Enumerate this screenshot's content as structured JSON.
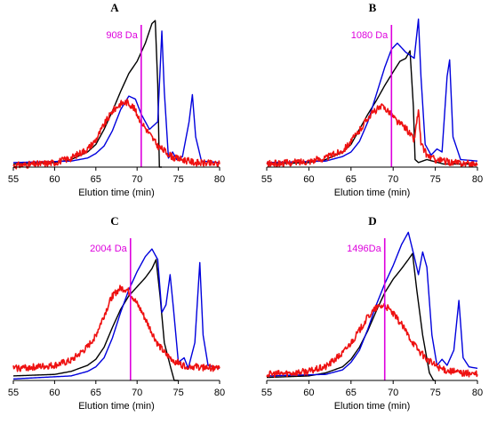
{
  "colors": {
    "black_series": "#000000",
    "blue_series": "#0000dd",
    "red_series": "#ee1111",
    "marker": "#dd00dd"
  },
  "chart_data": [
    {
      "type": "line",
      "panel": "A",
      "title": "",
      "xlabel": "Elution time (min)",
      "ylabel": "",
      "xlim": [
        55,
        80
      ],
      "ylim": [
        0,
        1
      ],
      "x_ticks": [
        55,
        60,
        65,
        70,
        75,
        80
      ],
      "marker": {
        "x": 70.5,
        "label": "908 Da"
      },
      "series": [
        {
          "color": "black",
          "points": [
            [
              55,
              0.02
            ],
            [
              60,
              0.03
            ],
            [
              62,
              0.05
            ],
            [
              64,
              0.1
            ],
            [
              65,
              0.15
            ],
            [
              66,
              0.25
            ],
            [
              67,
              0.37
            ],
            [
              68,
              0.5
            ],
            [
              69,
              0.62
            ],
            [
              70,
              0.7
            ],
            [
              71,
              0.82
            ],
            [
              71.8,
              0.95
            ],
            [
              72.2,
              0.97
            ],
            [
              72.5,
              0.55
            ],
            [
              72.7,
              0.0
            ],
            [
              73,
              0.0
            ]
          ]
        },
        {
          "color": "blue",
          "points": [
            [
              55,
              0.03
            ],
            [
              62,
              0.04
            ],
            [
              64,
              0.06
            ],
            [
              65,
              0.09
            ],
            [
              66,
              0.14
            ],
            [
              67,
              0.24
            ],
            [
              68,
              0.38
            ],
            [
              69,
              0.47
            ],
            [
              69.8,
              0.45
            ],
            [
              70.5,
              0.35
            ],
            [
              71.5,
              0.25
            ],
            [
              72.5,
              0.3
            ],
            [
              73,
              0.9
            ],
            [
              73.3,
              0.5
            ],
            [
              73.8,
              0.06
            ],
            [
              74.3,
              0.1
            ],
            [
              74.8,
              0.05
            ],
            [
              75.5,
              0.07
            ],
            [
              76.3,
              0.3
            ],
            [
              76.7,
              0.48
            ],
            [
              77.1,
              0.2
            ],
            [
              77.8,
              0.04
            ],
            [
              80,
              0.03
            ]
          ]
        },
        {
          "color": "red",
          "points": [
            [
              55,
              0.01
            ],
            [
              58,
              0.02
            ],
            [
              60,
              0.03
            ],
            [
              62,
              0.06
            ],
            [
              64,
              0.12
            ],
            [
              65,
              0.18
            ],
            [
              66,
              0.28
            ],
            [
              67,
              0.37
            ],
            [
              68,
              0.42
            ],
            [
              68.8,
              0.43
            ],
            [
              69.5,
              0.4
            ],
            [
              70.5,
              0.3
            ],
            [
              71.5,
              0.22
            ],
            [
              72.5,
              0.14
            ],
            [
              73.5,
              0.1
            ],
            [
              74.5,
              0.06
            ],
            [
              75.5,
              0.05
            ],
            [
              77,
              0.03
            ],
            [
              80,
              0.02
            ]
          ]
        }
      ]
    },
    {
      "type": "line",
      "panel": "B",
      "title": "",
      "xlabel": "Elution time (min)",
      "ylabel": "",
      "xlim": [
        55,
        80
      ],
      "ylim": [
        0,
        1
      ],
      "x_ticks": [
        55,
        60,
        65,
        70,
        75,
        80
      ],
      "marker": {
        "x": 69.8,
        "label": "1080 Da"
      },
      "series": [
        {
          "color": "black",
          "points": [
            [
              55,
              0.02
            ],
            [
              60,
              0.03
            ],
            [
              62,
              0.05
            ],
            [
              64,
              0.1
            ],
            [
              65,
              0.15
            ],
            [
              66,
              0.25
            ],
            [
              67,
              0.35
            ],
            [
              68,
              0.44
            ],
            [
              69,
              0.54
            ],
            [
              70,
              0.63
            ],
            [
              70.8,
              0.7
            ],
            [
              71.5,
              0.72
            ],
            [
              72,
              0.77
            ],
            [
              72.4,
              0.4
            ],
            [
              72.6,
              0.05
            ],
            [
              73,
              0.03
            ],
            [
              74,
              0.05
            ],
            [
              76,
              0.02
            ],
            [
              80,
              0.02
            ]
          ]
        },
        {
          "color": "blue",
          "points": [
            [
              55,
              0.03
            ],
            [
              62,
              0.04
            ],
            [
              64,
              0.07
            ],
            [
              65,
              0.1
            ],
            [
              66,
              0.17
            ],
            [
              67,
              0.3
            ],
            [
              68,
              0.48
            ],
            [
              69,
              0.66
            ],
            [
              69.8,
              0.78
            ],
            [
              70.5,
              0.82
            ],
            [
              71.5,
              0.76
            ],
            [
              72.5,
              0.72
            ],
            [
              73,
              0.98
            ],
            [
              73.3,
              0.6
            ],
            [
              73.8,
              0.15
            ],
            [
              74.5,
              0.08
            ],
            [
              75.2,
              0.12
            ],
            [
              75.8,
              0.1
            ],
            [
              76.4,
              0.6
            ],
            [
              76.7,
              0.71
            ],
            [
              77.1,
              0.2
            ],
            [
              78,
              0.05
            ],
            [
              80,
              0.04
            ]
          ]
        },
        {
          "color": "red",
          "points": [
            [
              55,
              0.02
            ],
            [
              58,
              0.03
            ],
            [
              60,
              0.04
            ],
            [
              62,
              0.06
            ],
            [
              64,
              0.11
            ],
            [
              65,
              0.17
            ],
            [
              66,
              0.24
            ],
            [
              67,
              0.33
            ],
            [
              68,
              0.38
            ],
            [
              68.8,
              0.4
            ],
            [
              69.5,
              0.37
            ],
            [
              70.5,
              0.3
            ],
            [
              71.5,
              0.26
            ],
            [
              72.5,
              0.18
            ],
            [
              73,
              0.38
            ],
            [
              73.3,
              0.15
            ],
            [
              74,
              0.08
            ],
            [
              75,
              0.05
            ],
            [
              77,
              0.03
            ],
            [
              80,
              0.02
            ]
          ]
        }
      ]
    },
    {
      "type": "line",
      "panel": "C",
      "title": "",
      "xlabel": "Elution time (min)",
      "ylabel": "",
      "xlim": [
        55,
        80
      ],
      "ylim": [
        0,
        1
      ],
      "x_ticks": [
        55,
        60,
        65,
        70,
        75,
        80
      ],
      "marker": {
        "x": 69.2,
        "label": "2004 Da"
      },
      "series": [
        {
          "color": "black",
          "points": [
            [
              55,
              0.03
            ],
            [
              60,
              0.04
            ],
            [
              62,
              0.06
            ],
            [
              64,
              0.1
            ],
            [
              65,
              0.14
            ],
            [
              66,
              0.22
            ],
            [
              67,
              0.35
            ],
            [
              68,
              0.47
            ],
            [
              69,
              0.56
            ],
            [
              70,
              0.62
            ],
            [
              71,
              0.68
            ],
            [
              71.8,
              0.74
            ],
            [
              72.3,
              0.8
            ],
            [
              72.8,
              0.55
            ],
            [
              73.3,
              0.25
            ],
            [
              74,
              0.1
            ],
            [
              74.5,
              0.0
            ],
            [
              75,
              0.0
            ]
          ]
        },
        {
          "color": "blue",
          "points": [
            [
              55,
              0.01
            ],
            [
              62,
              0.03
            ],
            [
              64,
              0.06
            ],
            [
              65,
              0.09
            ],
            [
              66,
              0.15
            ],
            [
              67,
              0.28
            ],
            [
              68,
              0.45
            ],
            [
              69,
              0.6
            ],
            [
              70,
              0.72
            ],
            [
              71,
              0.82
            ],
            [
              71.8,
              0.87
            ],
            [
              72.5,
              0.8
            ],
            [
              73,
              0.45
            ],
            [
              73.5,
              0.5
            ],
            [
              74,
              0.7
            ],
            [
              74.4,
              0.48
            ],
            [
              75,
              0.12
            ],
            [
              75.7,
              0.15
            ],
            [
              76.2,
              0.08
            ],
            [
              77,
              0.25
            ],
            [
              77.6,
              0.78
            ],
            [
              78,
              0.3
            ],
            [
              78.6,
              0.1
            ],
            [
              80,
              0.08
            ]
          ]
        },
        {
          "color": "red",
          "points": [
            [
              55,
              0.08
            ],
            [
              58,
              0.09
            ],
            [
              60,
              0.1
            ],
            [
              62,
              0.13
            ],
            [
              64,
              0.22
            ],
            [
              65,
              0.3
            ],
            [
              66,
              0.43
            ],
            [
              67,
              0.56
            ],
            [
              68,
              0.61
            ],
            [
              68.8,
              0.6
            ],
            [
              69.5,
              0.55
            ],
            [
              70.5,
              0.46
            ],
            [
              71.5,
              0.35
            ],
            [
              72.5,
              0.24
            ],
            [
              73.5,
              0.17
            ],
            [
              74.5,
              0.13
            ],
            [
              75.5,
              0.1
            ],
            [
              77,
              0.09
            ],
            [
              80,
              0.08
            ]
          ]
        }
      ]
    },
    {
      "type": "line",
      "panel": "D",
      "title": "",
      "xlabel": "Elution time (min)",
      "ylabel": "",
      "xlim": [
        55,
        80
      ],
      "ylim": [
        0,
        1
      ],
      "x_ticks": [
        55,
        60,
        65,
        70,
        75,
        80
      ],
      "marker": {
        "x": 69.0,
        "label": "1496Da"
      },
      "series": [
        {
          "color": "black",
          "points": [
            [
              55,
              0.02
            ],
            [
              60,
              0.03
            ],
            [
              62,
              0.05
            ],
            [
              64,
              0.09
            ],
            [
              65,
              0.14
            ],
            [
              66,
              0.22
            ],
            [
              67,
              0.33
            ],
            [
              68,
              0.46
            ],
            [
              69,
              0.58
            ],
            [
              70,
              0.67
            ],
            [
              71,
              0.74
            ],
            [
              71.8,
              0.8
            ],
            [
              72.3,
              0.84
            ],
            [
              72.8,
              0.6
            ],
            [
              73.5,
              0.3
            ],
            [
              74.3,
              0.05
            ],
            [
              74.8,
              0.0
            ],
            [
              75,
              0.0
            ]
          ]
        },
        {
          "color": "blue",
          "points": [
            [
              55,
              0.03
            ],
            [
              62,
              0.04
            ],
            [
              64,
              0.07
            ],
            [
              65,
              0.12
            ],
            [
              66,
              0.2
            ],
            [
              67,
              0.34
            ],
            [
              68,
              0.5
            ],
            [
              69,
              0.64
            ],
            [
              70,
              0.76
            ],
            [
              71,
              0.9
            ],
            [
              71.8,
              0.98
            ],
            [
              72.5,
              0.82
            ],
            [
              73,
              0.7
            ],
            [
              73.5,
              0.85
            ],
            [
              74,
              0.75
            ],
            [
              74.6,
              0.3
            ],
            [
              75.2,
              0.1
            ],
            [
              75.8,
              0.14
            ],
            [
              76.4,
              0.1
            ],
            [
              77.2,
              0.2
            ],
            [
              77.8,
              0.53
            ],
            [
              78.3,
              0.15
            ],
            [
              79,
              0.09
            ],
            [
              80,
              0.08
            ]
          ]
        },
        {
          "color": "red",
          "points": [
            [
              55,
              0.04
            ],
            [
              58,
              0.05
            ],
            [
              60,
              0.06
            ],
            [
              62,
              0.09
            ],
            [
              64,
              0.18
            ],
            [
              65,
              0.25
            ],
            [
              66,
              0.33
            ],
            [
              67,
              0.42
            ],
            [
              68,
              0.48
            ],
            [
              69,
              0.5
            ],
            [
              70,
              0.44
            ],
            [
              71,
              0.37
            ],
            [
              72,
              0.28
            ],
            [
              73,
              0.2
            ],
            [
              74,
              0.14
            ],
            [
              75,
              0.1
            ],
            [
              76,
              0.07
            ],
            [
              78,
              0.05
            ],
            [
              80,
              0.04
            ]
          ]
        }
      ]
    }
  ]
}
